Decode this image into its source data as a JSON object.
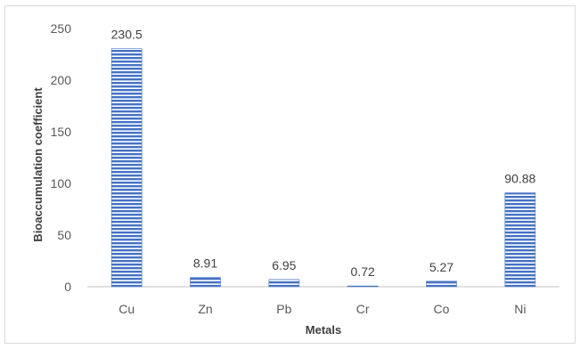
{
  "chart_data": {
    "type": "bar",
    "categories": [
      "Cu",
      "Zn",
      "Pb",
      "Cr",
      "Co",
      "Ni"
    ],
    "values": [
      230.5,
      8.91,
      6.95,
      0.72,
      5.27,
      90.88
    ],
    "data_labels": [
      "230.5",
      "8.91",
      "6.95",
      "0.72",
      "5.27",
      "90.88"
    ],
    "xlabel": "Metals",
    "ylabel": "Bioaccumulation coefficient",
    "ylim": [
      0,
      250
    ],
    "yticks": [
      0,
      50,
      100,
      150,
      200,
      250
    ],
    "grid": false,
    "legend": "none",
    "bar_fill": "#4472c4",
    "bar_stripe": "#ffffff",
    "axis_color": "#bfbfbf",
    "text_color": "#595959"
  }
}
